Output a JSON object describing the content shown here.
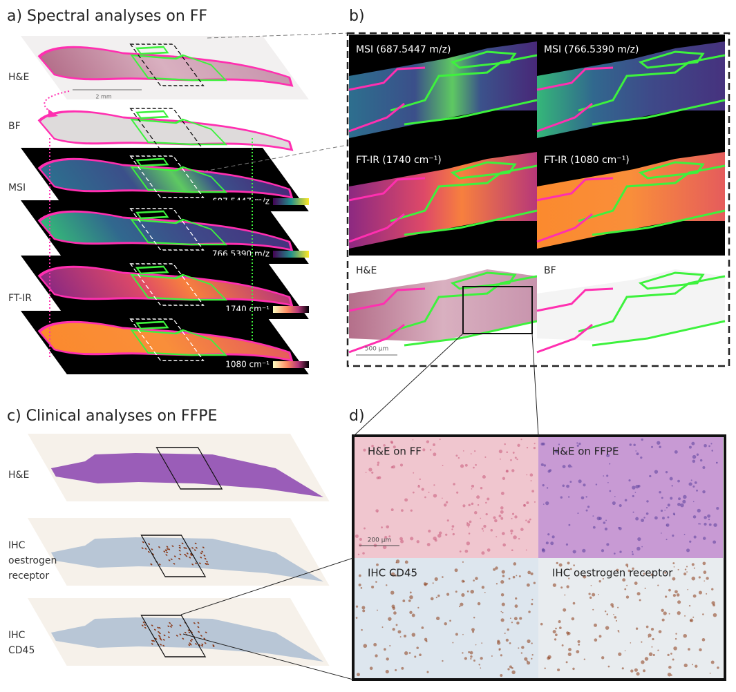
{
  "panel_a": {
    "title": "a) Spectral analyses on FF",
    "layer_labels": [
      "H&E",
      "BF",
      "MSI",
      "FT-IR"
    ],
    "scale_bar": "2 mm",
    "colorbar_labels": [
      "687.5447 m/z",
      "766.5390 m/z",
      "1740 cm⁻¹",
      "1080 cm⁻¹"
    ]
  },
  "panel_b": {
    "label": "b)",
    "tiles": [
      "MSI (687.5447 m/z)",
      "MSI (766.5390 m/z)",
      "FT-IR (1740 cm⁻¹)",
      "FT-IR (1080 cm⁻¹)",
      "H&E",
      "BF"
    ],
    "scale_bar": "500 µm"
  },
  "panel_c": {
    "title": "c) Clinical analyses on FFPE",
    "layer_labels": [
      [
        "H&E"
      ],
      [
        "IHC",
        "oestrogen",
        "receptor"
      ],
      [
        "IHC",
        "CD45"
      ]
    ]
  },
  "panel_d": {
    "label": "d)",
    "tiles": [
      "H&E on FF",
      "H&E on FFPE",
      "IHC CD45",
      "IHC oestrogen receptor"
    ],
    "scale_bar": "200 µm"
  }
}
